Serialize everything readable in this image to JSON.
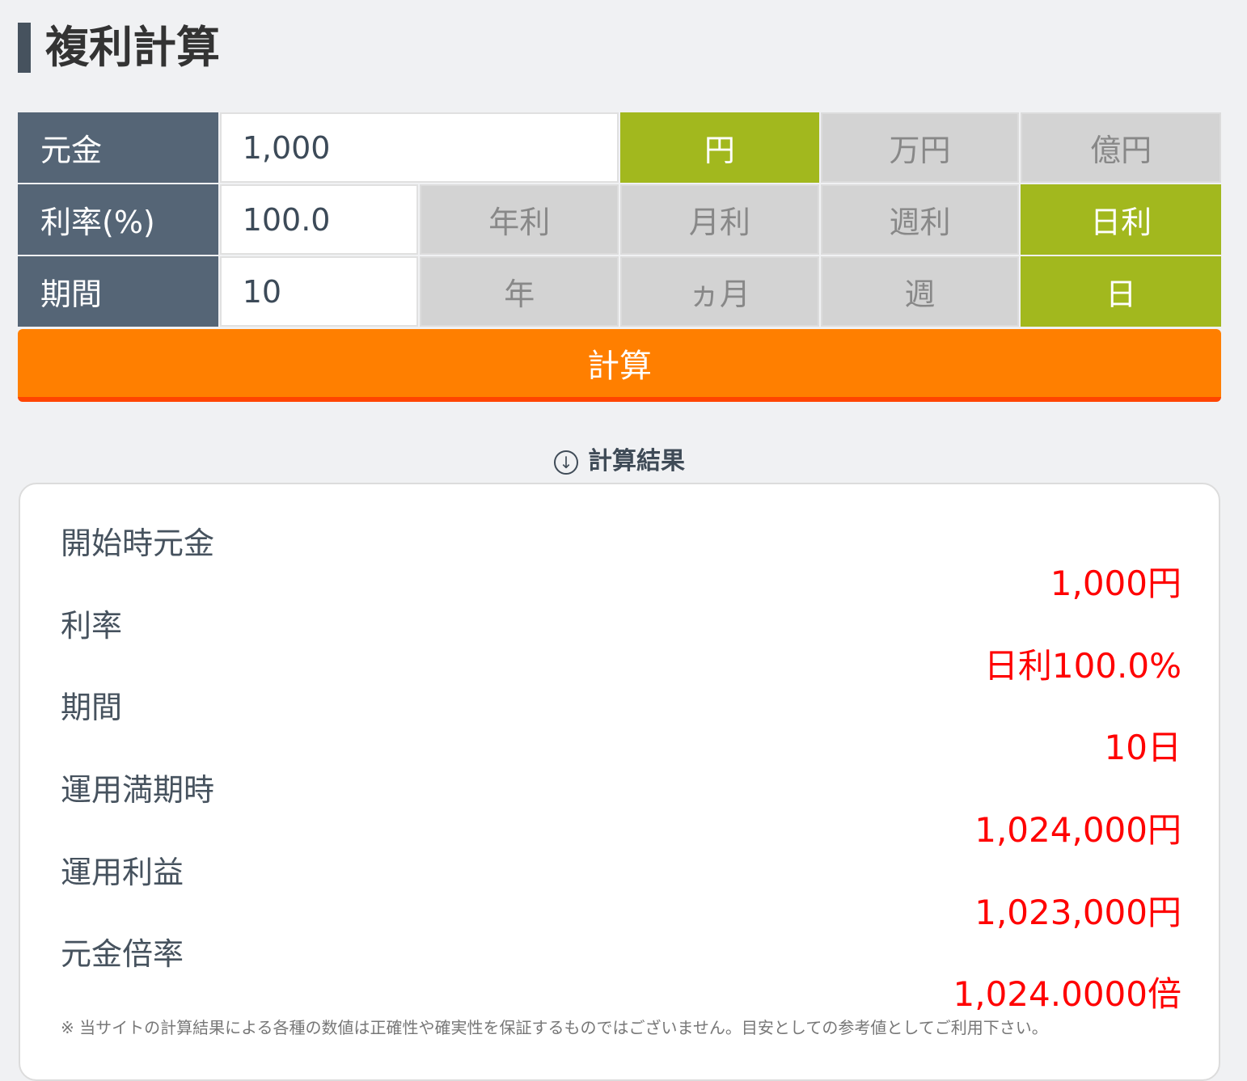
{
  "title": "複利計算",
  "principal": {
    "label": "元金",
    "value": "1,000",
    "units": [
      "円",
      "万円",
      "億円"
    ],
    "selected": "円"
  },
  "rate": {
    "label": "利率(%)",
    "value": "100.0",
    "units": [
      "年利",
      "月利",
      "週利",
      "日利"
    ],
    "selected": "日利"
  },
  "period": {
    "label": "期間",
    "value": "10",
    "units": [
      "年",
      "ヵ月",
      "週",
      "日"
    ],
    "selected": "日"
  },
  "calculate_label": "計算",
  "results_heading": "計算結果",
  "results": [
    {
      "label": "開始時元金",
      "value": "1,000円"
    },
    {
      "label": "利率",
      "value": "日利100.0%"
    },
    {
      "label": "期間",
      "value": "10日"
    },
    {
      "label": "運用満期時",
      "value": "1,024,000円"
    },
    {
      "label": "運用利益",
      "value": "1,023,000円"
    },
    {
      "label": "元金倍率",
      "value": "1,024.0000倍"
    }
  ],
  "note": "※ 当サイトの計算結果による各種の数値は正確性や確実性を保証するものではございません。目安としての参考値としてご利用下さい。",
  "colors": {
    "selected": "#a2b81e",
    "button": "#ff7f00",
    "result_value": "#ff0000",
    "label_bg": "#556576"
  }
}
